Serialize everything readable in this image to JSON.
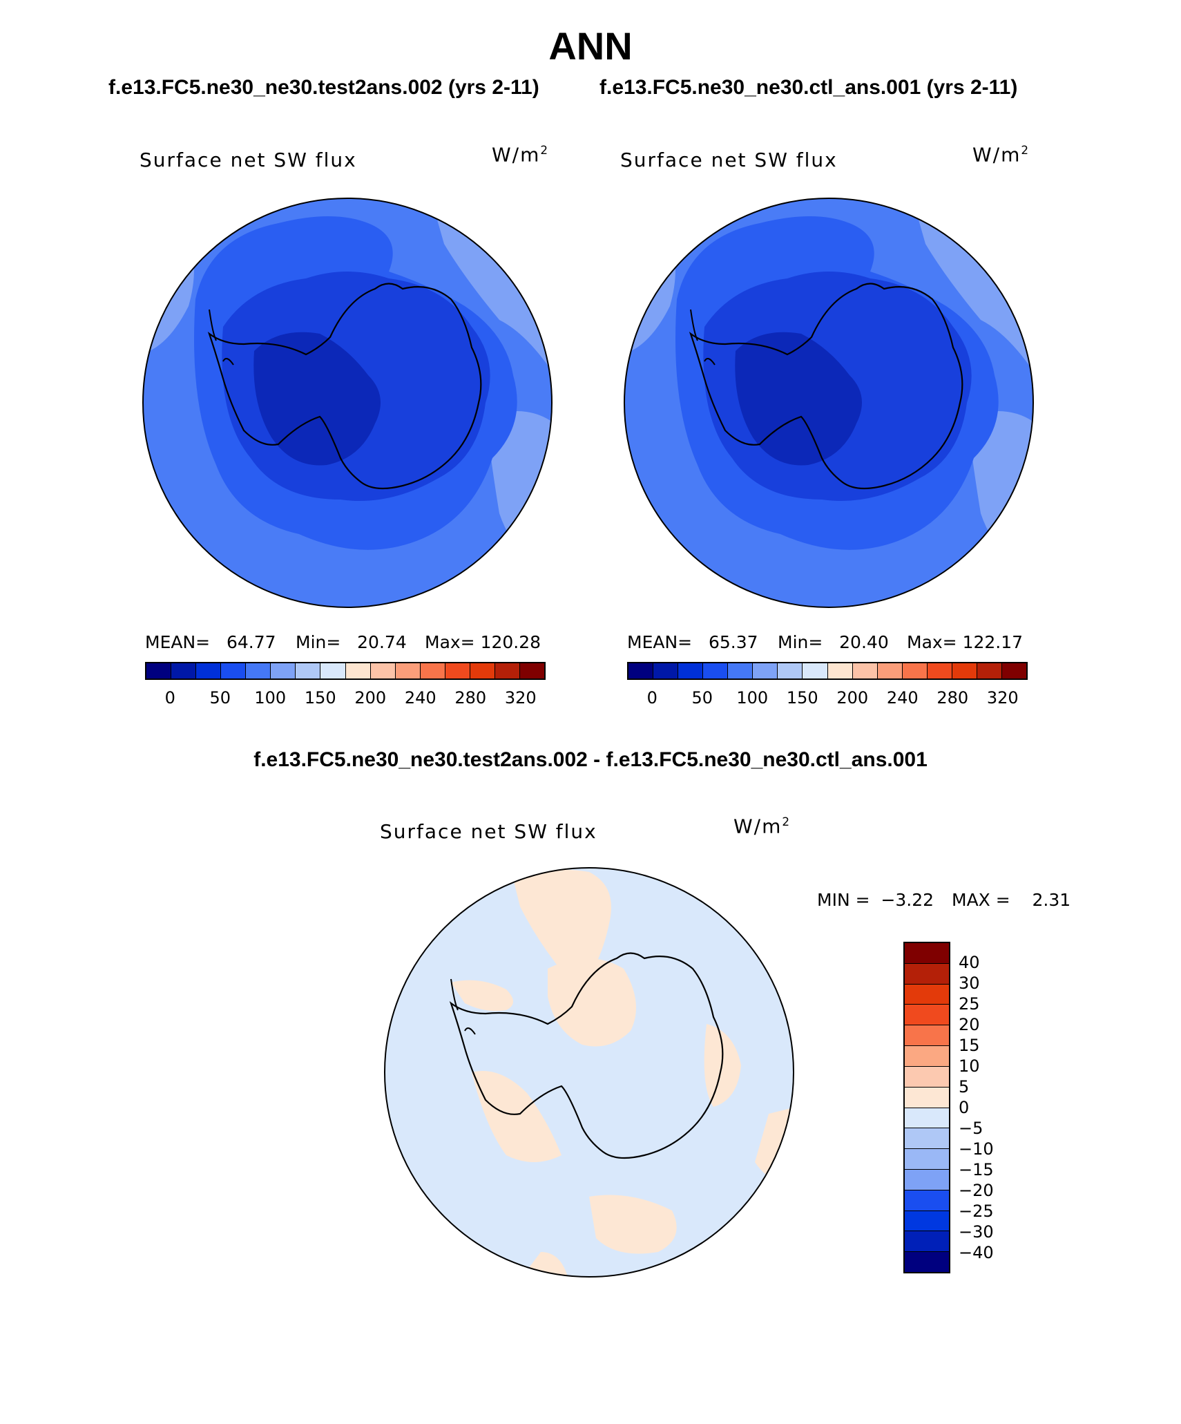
{
  "page_title": "ANN",
  "case_test": "f.e13.FC5.ne30_ne30.test2ans.002 (yrs 2-11)",
  "case_ctl": "f.e13.FC5.ne30_ne30.ctl_ans.001 (yrs 2-11)",
  "diff_title": "f.e13.FC5.ne30_ne30.test2ans.002 - f.e13.FC5.ne30_ne30.ctl_ans.001",
  "panels": {
    "left": {
      "variable": "Surface net SW flux",
      "units_base": "W/m",
      "units_exp": "2",
      "mean_label": "MEAN=",
      "mean_value": "64.77",
      "min_label": "Min=",
      "min_value": "20.74",
      "max_label": "Max=",
      "max_value": "120.28"
    },
    "right": {
      "variable": "Surface net SW flux",
      "units_base": "W/m",
      "units_exp": "2",
      "mean_label": "MEAN=",
      "mean_value": "65.37",
      "min_label": "Min=",
      "min_value": "20.40",
      "max_label": "Max=",
      "max_value": "122.17"
    },
    "diff": {
      "variable": "Surface net SW flux",
      "units_base": "W/m",
      "units_exp": "2",
      "min_label": "MIN =",
      "min_value": "−3.22",
      "max_label": "MAX =",
      "max_value": "2.31"
    }
  },
  "colorbar_main": {
    "colors": [
      "#00007f",
      "#0018a8",
      "#0030d8",
      "#1a4ef0",
      "#4578f5",
      "#7ea2f6",
      "#afc8f6",
      "#d9e8fb",
      "#fde5d0",
      "#fcc3a8",
      "#fb9e7a",
      "#f8744a",
      "#f04a1e",
      "#e33a0a",
      "#b42008",
      "#7f0000"
    ],
    "ticks": [
      "0",
      "50",
      "100",
      "150",
      "200",
      "240",
      "280",
      "320"
    ]
  },
  "colorbar_diff": {
    "colors": [
      "#7f0000",
      "#b42008",
      "#e33a0a",
      "#f04a1e",
      "#f8744a",
      "#fba882",
      "#fcc9b0",
      "#fde7d4",
      "#d9e8fb",
      "#afc8f6",
      "#9ab8f6",
      "#7ea2f6",
      "#1a4ef0",
      "#0038e0",
      "#0020b8",
      "#00007f"
    ],
    "ticks": [
      "40",
      "30",
      "25",
      "20",
      "15",
      "10",
      "5",
      "0",
      "−5",
      "−10",
      "−15",
      "−20",
      "−25",
      "−30",
      "−40"
    ]
  },
  "map_colors": {
    "outer": "#4a7cf6",
    "ring": "#7ea2f6",
    "mid": "#2a5ef2",
    "inner": "#1840dc",
    "core": "#0c28b8",
    "diff_base": "#d9e8fb",
    "diff_pos": "#fde7d4"
  }
}
